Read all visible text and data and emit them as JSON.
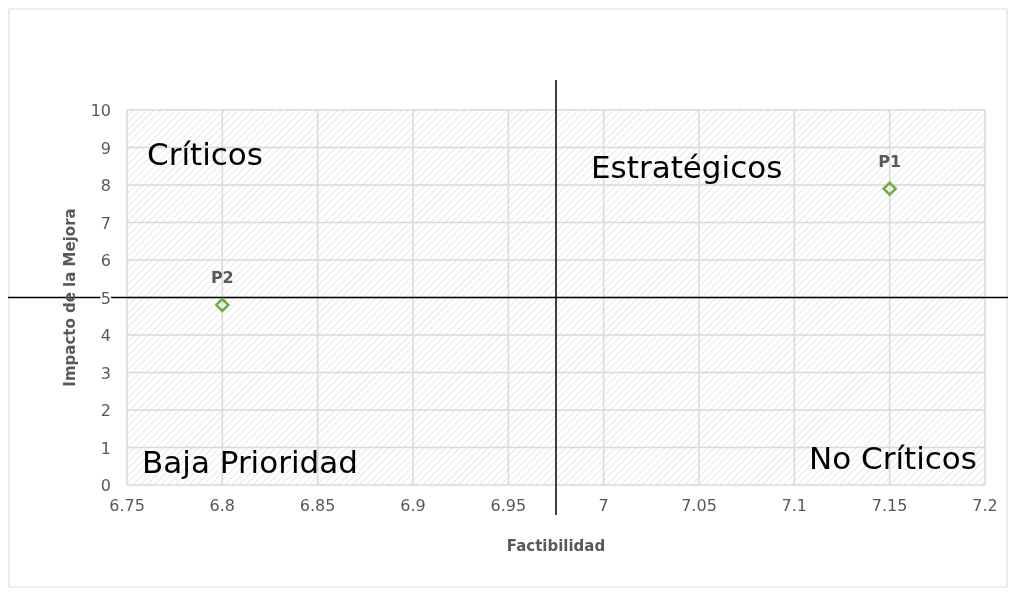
{
  "chart_data": {
    "type": "scatter",
    "xlabel": "Factibilidad",
    "ylabel": "Impacto de la Mejora",
    "series": [
      {
        "color": "#70ad47",
        "x": [
          7.15,
          6.8
        ],
        "values": [
          7.9,
          4.8
        ]
      }
    ],
    "xlim": [
      6.75,
      7.2
    ],
    "xticks": [
      6.75,
      6.8,
      6.85,
      6.9,
      6.95,
      7,
      7.05,
      7.1,
      7.15,
      7.2
    ],
    "ylim": [
      0,
      10
    ],
    "yticks": [
      0,
      1,
      2,
      3,
      4,
      5,
      6,
      7,
      8,
      9,
      10
    ],
    "grid": true,
    "marker": "diamond",
    "ref_lines": [
      {
        "axis": "x",
        "value": 6.975,
        "color": "#000000"
      },
      {
        "axis": "y",
        "value": 5,
        "color": "#000000"
      }
    ],
    "annotations": [
      {
        "text": "P1",
        "x": 7.15,
        "y": 7.9
      },
      {
        "text": "P2",
        "x": 6.8,
        "y": 4.8
      },
      "Críticos",
      "Estratégicos",
      "Baja Prioridad",
      "No Críticos"
    ]
  }
}
